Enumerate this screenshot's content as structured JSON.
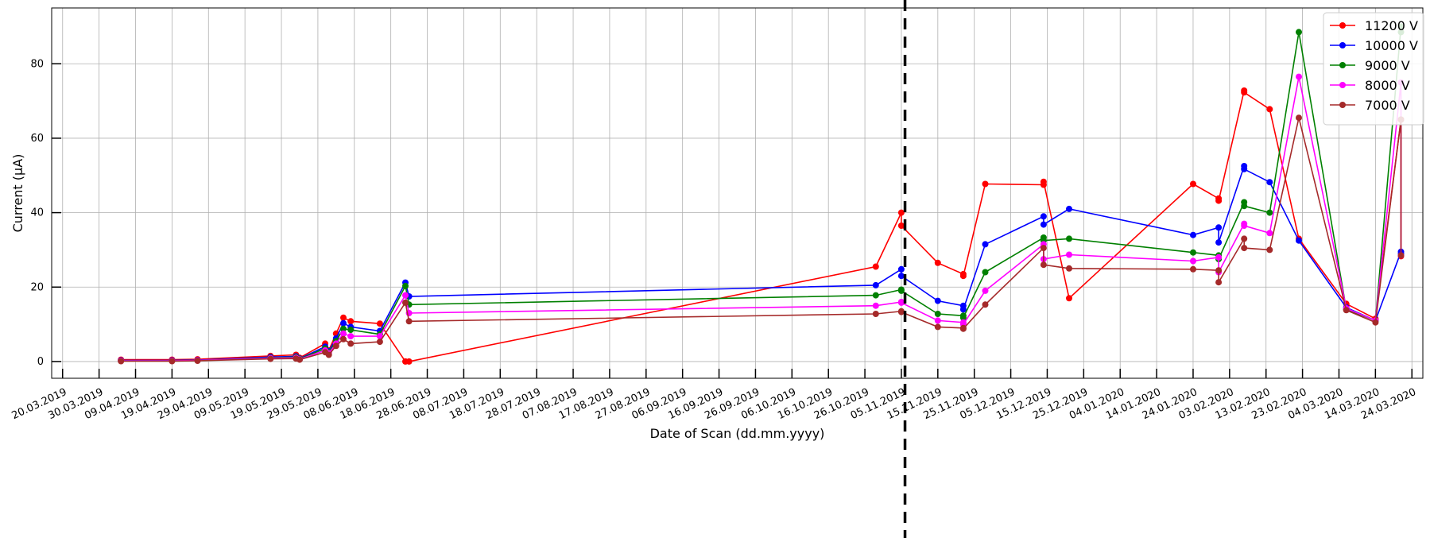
{
  "chart_data": {
    "type": "line",
    "title": "",
    "xlabel": "Date of Scan (dd.mm.yyyy)",
    "ylabel": "Current (µA)",
    "xlim": [
      "2019-03-17",
      "2020-03-27"
    ],
    "ylim": [
      -4.5,
      95
    ],
    "grid": true,
    "legend_position": "top-right",
    "x_tick_labels": [
      "20.03.2019",
      "30.03.2019",
      "09.04.2019",
      "19.04.2019",
      "29.04.2019",
      "09.05.2019",
      "19.05.2019",
      "29.05.2019",
      "08.06.2019",
      "18.06.2019",
      "28.06.2019",
      "08.07.2019",
      "18.07.2019",
      "28.07.2019",
      "07.08.2019",
      "17.08.2019",
      "27.08.2019",
      "06.09.2019",
      "16.09.2019",
      "26.09.2019",
      "06.10.2019",
      "16.10.2019",
      "26.10.2019",
      "05.11.2019",
      "15.11.2019",
      "25.11.2019",
      "05.12.2019",
      "15.12.2019",
      "25.12.2019",
      "04.01.2020",
      "14.01.2020",
      "24.01.2020",
      "03.02.2020",
      "13.02.2020",
      "23.02.2020",
      "04.03.2020",
      "14.03.2020",
      "24.03.2020"
    ],
    "y_ticks": [
      0,
      20,
      40,
      60,
      80
    ],
    "vline_date": "2019-11-06",
    "series": [
      {
        "name": "11200 V",
        "color": "#ff0000",
        "points": [
          [
            "2019-04-05",
            0.5
          ],
          [
            "2019-04-19",
            0.5
          ],
          [
            "2019-04-26",
            0.6
          ],
          [
            "2019-05-16",
            1.5
          ],
          [
            "2019-05-23",
            1.8
          ],
          [
            "2019-05-24",
            1.0
          ],
          [
            "2019-05-31",
            4.8
          ],
          [
            "2019-06-01",
            3.0
          ],
          [
            "2019-06-03",
            7.5
          ],
          [
            "2019-06-05",
            11.8
          ],
          [
            "2019-06-07",
            10.8
          ],
          [
            "2019-06-15",
            10.2
          ],
          [
            "2019-06-22",
            0
          ],
          [
            "2019-06-23",
            0
          ],
          [
            "2019-10-29",
            25.5
          ],
          [
            "2019-11-05",
            40.0
          ],
          [
            "2019-11-05",
            36.5
          ],
          [
            "2019-11-15",
            26.5
          ],
          [
            "2019-11-22",
            23.5
          ],
          [
            "2019-11-22",
            23.0
          ],
          [
            "2019-11-28",
            47.7
          ],
          [
            "2019-12-14",
            47.5
          ],
          [
            "2019-12-14",
            48.3
          ],
          [
            "2019-12-21",
            17.0
          ],
          [
            "2020-01-24",
            47.7
          ],
          [
            "2020-01-31",
            43.8
          ],
          [
            "2020-01-31",
            43.2
          ],
          [
            "2020-02-07",
            72.8
          ],
          [
            "2020-02-07",
            72.3
          ],
          [
            "2020-02-14",
            67.8
          ],
          [
            "2020-02-22",
            33.0
          ],
          [
            "2020-03-06",
            15.5
          ],
          [
            "2020-03-14",
            11.5
          ],
          [
            "2020-03-21",
            65.0
          ],
          [
            "2020-03-21",
            28.3
          ]
        ]
      },
      {
        "name": "10000 V",
        "color": "#0000ff",
        "points": [
          [
            "2019-04-05",
            0.3
          ],
          [
            "2019-04-19",
            0.3
          ],
          [
            "2019-04-26",
            0.4
          ],
          [
            "2019-05-16",
            1.2
          ],
          [
            "2019-05-23",
            1.4
          ],
          [
            "2019-05-24",
            0.8
          ],
          [
            "2019-05-31",
            4.0
          ],
          [
            "2019-06-01",
            2.8
          ],
          [
            "2019-06-03",
            6.2
          ],
          [
            "2019-06-05",
            10.3
          ],
          [
            "2019-06-07",
            9.3
          ],
          [
            "2019-06-15",
            8.2
          ],
          [
            "2019-06-22",
            21.2
          ],
          [
            "2019-06-23",
            17.5
          ],
          [
            "2019-10-29",
            20.5
          ],
          [
            "2019-11-05",
            24.8
          ],
          [
            "2019-11-05",
            23.0
          ],
          [
            "2019-11-15",
            16.3
          ],
          [
            "2019-11-22",
            15.0
          ],
          [
            "2019-11-22",
            14.0
          ],
          [
            "2019-11-28",
            31.5
          ],
          [
            "2019-12-14",
            39.0
          ],
          [
            "2019-12-14",
            36.8
          ],
          [
            "2019-12-21",
            41.0
          ],
          [
            "2020-01-24",
            34.0
          ],
          [
            "2020-01-31",
            36.0
          ],
          [
            "2020-01-31",
            32.0
          ],
          [
            "2020-02-07",
            52.5
          ],
          [
            "2020-02-07",
            51.7
          ],
          [
            "2020-02-14",
            48.2
          ],
          [
            "2020-02-22",
            32.5
          ],
          [
            "2020-03-06",
            14.5
          ],
          [
            "2020-03-14",
            11.0
          ],
          [
            "2020-03-21",
            29.5
          ],
          [
            "2020-03-21",
            29.0
          ]
        ]
      },
      {
        "name": "9000 V",
        "color": "#008000",
        "points": [
          [
            "2019-04-05",
            0.2
          ],
          [
            "2019-04-19",
            0.2
          ],
          [
            "2019-04-26",
            0.3
          ],
          [
            "2019-05-16",
            1.0
          ],
          [
            "2019-05-23",
            1.2
          ],
          [
            "2019-05-24",
            0.7
          ],
          [
            "2019-05-31",
            3.5
          ],
          [
            "2019-06-01",
            2.5
          ],
          [
            "2019-06-03",
            5.5
          ],
          [
            "2019-06-05",
            8.8
          ],
          [
            "2019-06-07",
            8.5
          ],
          [
            "2019-06-15",
            7.3
          ],
          [
            "2019-06-22",
            20.3
          ],
          [
            "2019-06-23",
            15.3
          ],
          [
            "2019-10-29",
            17.8
          ],
          [
            "2019-11-05",
            19.3
          ],
          [
            "2019-11-05",
            19.0
          ],
          [
            "2019-11-15",
            12.8
          ],
          [
            "2019-11-22",
            12.3
          ],
          [
            "2019-11-22",
            11.8
          ],
          [
            "2019-11-28",
            24.0
          ],
          [
            "2019-12-14",
            33.3
          ],
          [
            "2019-12-14",
            32.5
          ],
          [
            "2019-12-21",
            33.0
          ],
          [
            "2020-01-24",
            29.3
          ],
          [
            "2020-01-31",
            28.5
          ],
          [
            "2020-01-31",
            27.5
          ],
          [
            "2020-02-07",
            42.8
          ],
          [
            "2020-02-07",
            41.8
          ],
          [
            "2020-02-14",
            40.0
          ],
          [
            "2020-02-22",
            88.5
          ],
          [
            "2020-03-06",
            14.0
          ],
          [
            "2020-03-14",
            11.0
          ],
          [
            "2020-03-21",
            90.0
          ],
          [
            "2020-03-21",
            88.5
          ]
        ]
      },
      {
        "name": "8000 V",
        "color": "#ff00ff",
        "points": [
          [
            "2019-04-05",
            0.2
          ],
          [
            "2019-04-19",
            0.2
          ],
          [
            "2019-04-26",
            0.3
          ],
          [
            "2019-05-16",
            0.9
          ],
          [
            "2019-05-23",
            1.0
          ],
          [
            "2019-05-24",
            0.6
          ],
          [
            "2019-05-31",
            3.0
          ],
          [
            "2019-06-01",
            2.2
          ],
          [
            "2019-06-03",
            4.8
          ],
          [
            "2019-06-05",
            7.5
          ],
          [
            "2019-06-07",
            6.8
          ],
          [
            "2019-06-15",
            6.8
          ],
          [
            "2019-06-22",
            17.8
          ],
          [
            "2019-06-23",
            13.0
          ],
          [
            "2019-10-29",
            15.0
          ],
          [
            "2019-11-05",
            16.0
          ],
          [
            "2019-11-05",
            15.8
          ],
          [
            "2019-11-15",
            11.0
          ],
          [
            "2019-11-22",
            10.5
          ],
          [
            "2019-11-22",
            10.0
          ],
          [
            "2019-11-28",
            19.0
          ],
          [
            "2019-12-14",
            31.5
          ],
          [
            "2019-12-14",
            27.5
          ],
          [
            "2019-12-21",
            28.7
          ],
          [
            "2020-01-24",
            27.0
          ],
          [
            "2020-01-31",
            28.0
          ],
          [
            "2020-01-31",
            24.0
          ],
          [
            "2020-02-07",
            37.0
          ],
          [
            "2020-02-07",
            36.5
          ],
          [
            "2020-02-14",
            34.5
          ],
          [
            "2020-02-22",
            76.5
          ],
          [
            "2020-03-06",
            14.3
          ],
          [
            "2020-03-14",
            11.0
          ],
          [
            "2020-03-21",
            75.0
          ],
          [
            "2020-03-21",
            28.5
          ]
        ]
      },
      {
        "name": "7000 V",
        "color": "#a52a2a",
        "points": [
          [
            "2019-04-05",
            0.1
          ],
          [
            "2019-04-19",
            0.1
          ],
          [
            "2019-04-26",
            0.2
          ],
          [
            "2019-05-16",
            0.7
          ],
          [
            "2019-05-23",
            0.8
          ],
          [
            "2019-05-24",
            0.5
          ],
          [
            "2019-05-31",
            2.5
          ],
          [
            "2019-06-01",
            1.8
          ],
          [
            "2019-06-03",
            4.2
          ],
          [
            "2019-06-05",
            6.0
          ],
          [
            "2019-06-07",
            4.8
          ],
          [
            "2019-06-15",
            5.3
          ],
          [
            "2019-06-22",
            15.8
          ],
          [
            "2019-06-23",
            10.8
          ],
          [
            "2019-10-29",
            12.8
          ],
          [
            "2019-11-05",
            13.5
          ],
          [
            "2019-11-05",
            13.3
          ],
          [
            "2019-11-15",
            9.3
          ],
          [
            "2019-11-22",
            9.0
          ],
          [
            "2019-11-22",
            8.8
          ],
          [
            "2019-11-28",
            15.3
          ],
          [
            "2019-12-14",
            30.5
          ],
          [
            "2019-12-14",
            26.0
          ],
          [
            "2019-12-21",
            25.0
          ],
          [
            "2020-01-24",
            24.8
          ],
          [
            "2020-01-31",
            24.5
          ],
          [
            "2020-01-31",
            21.3
          ],
          [
            "2020-02-07",
            33.0
          ],
          [
            "2020-02-07",
            30.5
          ],
          [
            "2020-02-14",
            30.0
          ],
          [
            "2020-02-22",
            65.5
          ],
          [
            "2020-03-06",
            13.8
          ],
          [
            "2020-03-14",
            10.5
          ],
          [
            "2020-03-21",
            65.0
          ],
          [
            "2020-03-21",
            28.5
          ]
        ]
      }
    ]
  }
}
